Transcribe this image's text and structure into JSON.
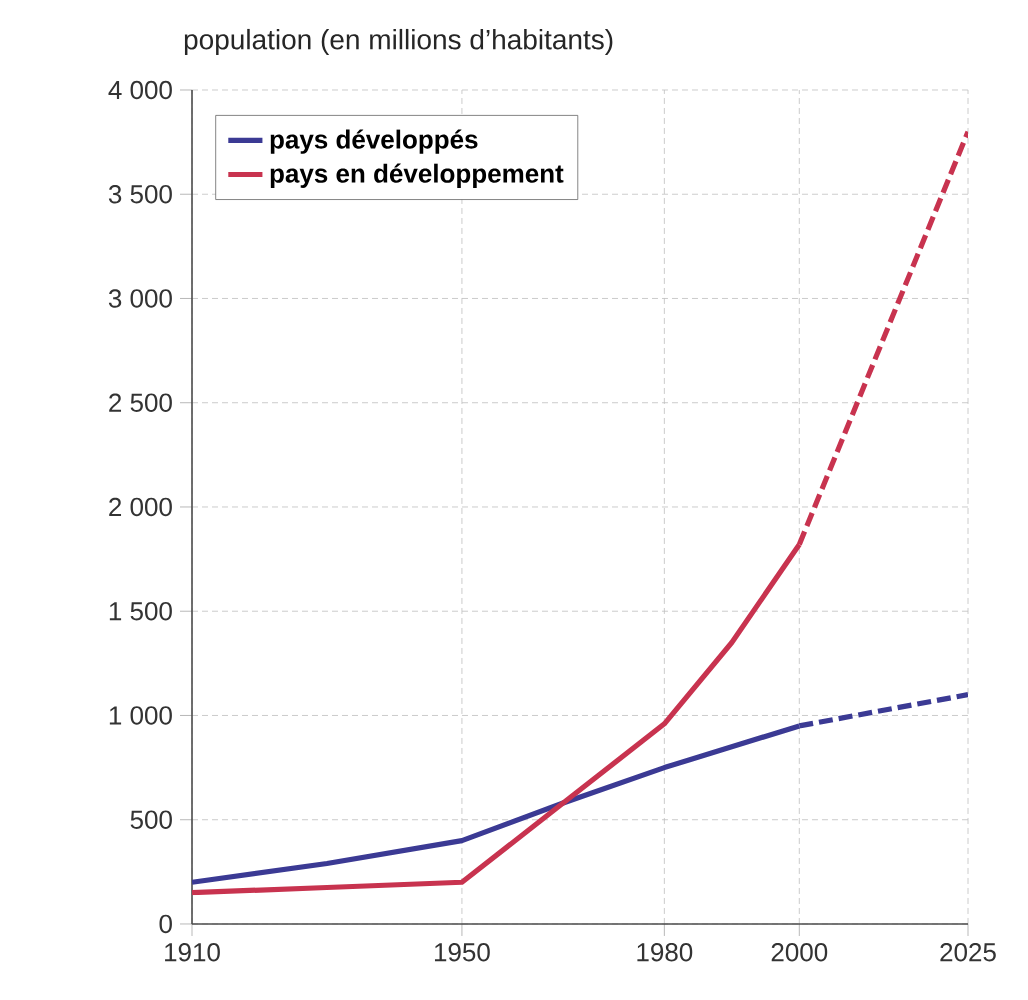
{
  "chart_data": {
    "type": "line",
    "ylabel": "population (en millions d’habitants)",
    "xlim": [
      1910,
      2025
    ],
    "xticks": [
      1910,
      1950,
      1980,
      2000,
      2025
    ],
    "ylim": [
      0,
      4000
    ],
    "yticks": [
      {
        "value": 0,
        "label": "0"
      },
      {
        "value": 500,
        "label": "500"
      },
      {
        "value": 1000,
        "label": "1 000"
      },
      {
        "value": 1500,
        "label": "1 500"
      },
      {
        "value": 2000,
        "label": "2 000"
      },
      {
        "value": 2500,
        "label": "2 500"
      },
      {
        "value": 3000,
        "label": "3 000"
      },
      {
        "value": 3500,
        "label": "3 500"
      },
      {
        "value": 4000,
        "label": "4 000"
      }
    ],
    "grid": true,
    "legend": "top left",
    "series": [
      {
        "name": "pays développés",
        "color": "#3b3a94",
        "line_style": "solid",
        "x": [
          1910,
          1930,
          1950,
          1965,
          1980,
          2000
        ],
        "values": [
          200,
          290,
          400,
          580,
          750,
          950
        ]
      },
      {
        "name": "pays en développement",
        "color": "#c8334f",
        "line_style": "solid",
        "x": [
          1910,
          1930,
          1950,
          1965,
          1980,
          1990,
          2000
        ],
        "values": [
          150,
          175,
          200,
          580,
          960,
          1350,
          1820
        ]
      },
      {
        "color": "#3b3a94",
        "line_style": "dashed",
        "x": [
          2000,
          2025
        ],
        "values": [
          950,
          1100
        ]
      },
      {
        "color": "#c8334f",
        "line_style": "dashed",
        "x": [
          2000,
          2025
        ],
        "values": [
          1820,
          3800
        ]
      }
    ]
  }
}
